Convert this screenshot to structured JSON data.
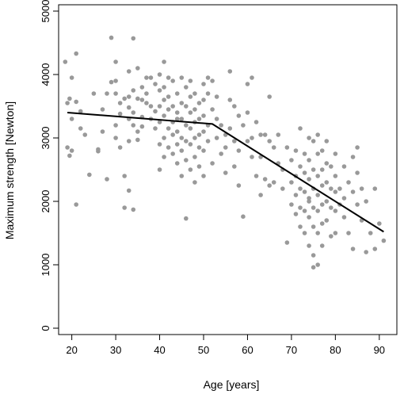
{
  "chart_data": {
    "type": "scatter",
    "xlabel": "Age [years]",
    "ylabel": "Maximum strength [Newton]",
    "xlim": [
      17,
      94
    ],
    "ylim": [
      -100,
      5100
    ],
    "xticks": [
      20,
      30,
      40,
      50,
      60,
      70,
      80,
      90
    ],
    "yticks": [
      0,
      1000,
      2000,
      3000,
      4000,
      5000
    ],
    "point_color": "#999999",
    "line_color": "#000000",
    "points": [
      [
        18.5,
        4200
      ],
      [
        19,
        3550
      ],
      [
        19.5,
        3620
      ],
      [
        20,
        3950
      ],
      [
        20,
        3300
      ],
      [
        19,
        2850
      ],
      [
        20,
        2800
      ],
      [
        19.5,
        2720
      ],
      [
        21,
        4330
      ],
      [
        21,
        3570
      ],
      [
        22,
        3420
      ],
      [
        21,
        1950
      ],
      [
        22,
        3150
      ],
      [
        23,
        3050
      ],
      [
        24,
        2420
      ],
      [
        25,
        3700
      ],
      [
        26,
        2790
      ],
      [
        26,
        2820
      ],
      [
        27,
        3100
      ],
      [
        28,
        2350
      ],
      [
        29,
        4580
      ],
      [
        29,
        3880
      ],
      [
        30,
        3900
      ],
      [
        30,
        4200
      ],
      [
        30,
        3700
      ],
      [
        30,
        3200
      ],
      [
        30,
        3000
      ],
      [
        31,
        3550
      ],
      [
        31,
        3380
      ],
      [
        31,
        2850
      ],
      [
        32,
        3620
      ],
      [
        32,
        2400
      ],
      [
        32,
        1900
      ],
      [
        33,
        4050
      ],
      [
        33,
        3650
      ],
      [
        33,
        3480
      ],
      [
        33,
        3300
      ],
      [
        33,
        2950
      ],
      [
        33,
        2170
      ],
      [
        34,
        4570
      ],
      [
        34,
        3750
      ],
      [
        34,
        3400
      ],
      [
        34,
        3200
      ],
      [
        34,
        1870
      ],
      [
        35,
        3620
      ],
      [
        35,
        3100
      ],
      [
        35,
        2970
      ],
      [
        36,
        3800
      ],
      [
        36,
        3330
      ],
      [
        36,
        3180
      ],
      [
        37,
        3950
      ],
      [
        37,
        3700
      ],
      [
        37,
        3550
      ],
      [
        38,
        3950
      ],
      [
        38,
        3500
      ],
      [
        38,
        3300
      ],
      [
        39,
        3850
      ],
      [
        39,
        3420
      ],
      [
        39,
        3150
      ],
      [
        40,
        4000
      ],
      [
        40,
        3750
      ],
      [
        40,
        3500
      ],
      [
        40,
        3250
      ],
      [
        40,
        2900
      ],
      [
        40,
        2500
      ],
      [
        41,
        4200
      ],
      [
        41,
        3800
      ],
      [
        41,
        3600
      ],
      [
        41,
        3350
      ],
      [
        41,
        3000
      ],
      [
        41,
        2700
      ],
      [
        42,
        3950
      ],
      [
        42,
        3650
      ],
      [
        42,
        3450
      ],
      [
        42,
        3150
      ],
      [
        42,
        2850
      ],
      [
        43,
        3900
      ],
      [
        43,
        3500
      ],
      [
        43,
        3250
      ],
      [
        43,
        3050
      ],
      [
        43,
        2750
      ],
      [
        44,
        3700
      ],
      [
        44,
        3400
      ],
      [
        44,
        3100
      ],
      [
        44,
        2900
      ],
      [
        44,
        2600
      ],
      [
        45,
        3950
      ],
      [
        45,
        3550
      ],
      [
        45,
        3300
      ],
      [
        45,
        3000
      ],
      [
        45,
        2800
      ],
      [
        45,
        2400
      ],
      [
        46,
        3800
      ],
      [
        46,
        3500
      ],
      [
        46,
        3200
      ],
      [
        46,
        2950
      ],
      [
        46,
        2650
      ],
      [
        46,
        1730
      ],
      [
        47,
        3900
      ],
      [
        47,
        3650
      ],
      [
        47,
        3400
      ],
      [
        47,
        3150
      ],
      [
        47,
        2900
      ],
      [
        47,
        2500
      ],
      [
        48,
        3700
      ],
      [
        48,
        3450
      ],
      [
        48,
        3250
      ],
      [
        48,
        3000
      ],
      [
        48,
        2700
      ],
      [
        49,
        3550
      ],
      [
        49,
        3300
      ],
      [
        49,
        3050
      ],
      [
        49,
        2850
      ],
      [
        49,
        2550
      ],
      [
        50,
        3850
      ],
      [
        50,
        3600
      ],
      [
        50,
        3350
      ],
      [
        50,
        3100
      ],
      [
        50,
        2800
      ],
      [
        50,
        2400
      ],
      [
        51,
        3950
      ],
      [
        51,
        3700
      ],
      [
        51,
        3200
      ],
      [
        51,
        2950
      ],
      [
        52,
        3900
      ],
      [
        52,
        3450
      ],
      [
        53,
        3650
      ],
      [
        53,
        3300
      ],
      [
        53,
        3000
      ],
      [
        54,
        3200
      ],
      [
        54,
        2750
      ],
      [
        55,
        3050
      ],
      [
        55,
        2850
      ],
      [
        55,
        2450
      ],
      [
        56,
        4050
      ],
      [
        56,
        3600
      ],
      [
        56,
        3150
      ],
      [
        57,
        3500
      ],
      [
        57,
        2950
      ],
      [
        57,
        2550
      ],
      [
        58,
        3350
      ],
      [
        58,
        2800
      ],
      [
        59,
        3200
      ],
      [
        59,
        1760
      ],
      [
        60,
        3850
      ],
      [
        60,
        3400
      ],
      [
        60,
        2950
      ],
      [
        61,
        3950
      ],
      [
        61,
        3000
      ],
      [
        61,
        2700
      ],
      [
        62,
        3250
      ],
      [
        62,
        2400
      ],
      [
        63,
        3050
      ],
      [
        63,
        2700
      ],
      [
        64,
        2350
      ],
      [
        64,
        3050
      ],
      [
        65,
        3650
      ],
      [
        65,
        2950
      ],
      [
        65,
        2250
      ],
      [
        66,
        2850
      ],
      [
        66,
        2300
      ],
      [
        67,
        2600
      ],
      [
        67,
        3050
      ],
      [
        68,
        2500
      ],
      [
        68,
        2200
      ],
      [
        69,
        2850
      ],
      [
        69,
        1350
      ],
      [
        70,
        2650
      ],
      [
        70,
        2300
      ],
      [
        70,
        1950
      ],
      [
        71,
        2800
      ],
      [
        71,
        2400
      ],
      [
        71,
        2100
      ],
      [
        71,
        1800
      ],
      [
        72,
        3150
      ],
      [
        72,
        2550
      ],
      [
        72,
        2200
      ],
      [
        72,
        1900
      ],
      [
        72,
        1600
      ],
      [
        73,
        2750
      ],
      [
        73,
        2450
      ],
      [
        73,
        2150
      ],
      [
        73,
        1850
      ],
      [
        73,
        1500
      ],
      [
        74,
        3000
      ],
      [
        74,
        2650
      ],
      [
        74,
        2350
      ],
      [
        74,
        2050
      ],
      [
        74,
        1750
      ],
      [
        74,
        1300
      ],
      [
        75,
        2950
      ],
      [
        75,
        2500
      ],
      [
        75,
        2200
      ],
      [
        75,
        1900
      ],
      [
        75,
        1600
      ],
      [
        75,
        1150
      ],
      [
        75,
        960
      ],
      [
        76,
        3050
      ],
      [
        76,
        2750
      ],
      [
        76,
        2400
      ],
      [
        76,
        2100
      ],
      [
        76,
        1850
      ],
      [
        76,
        1500
      ],
      [
        76,
        1000
      ],
      [
        77,
        2800
      ],
      [
        77,
        2500
      ],
      [
        77,
        2250
      ],
      [
        77,
        1950
      ],
      [
        77,
        1650
      ],
      [
        77,
        1300
      ],
      [
        78,
        2950
      ],
      [
        78,
        2600
      ],
      [
        78,
        2300
      ],
      [
        78,
        2000
      ],
      [
        78,
        1700
      ],
      [
        79,
        2550
      ],
      [
        79,
        2200
      ],
      [
        79,
        1900
      ],
      [
        80,
        2750
      ],
      [
        80,
        2400
      ],
      [
        80,
        2150
      ],
      [
        80,
        1850
      ],
      [
        80,
        1500
      ],
      [
        81,
        2200
      ],
      [
        81,
        1950
      ],
      [
        82,
        2550
      ],
      [
        82,
        2050
      ],
      [
        82,
        1750
      ],
      [
        83,
        2300
      ],
      [
        83,
        1500
      ],
      [
        84,
        2700
      ],
      [
        84,
        2150
      ],
      [
        84,
        1250
      ],
      [
        85,
        2850
      ],
      [
        85,
        2450
      ],
      [
        85,
        1950
      ],
      [
        86,
        2200
      ],
      [
        86,
        1700
      ],
      [
        87,
        2000
      ],
      [
        87,
        1200
      ],
      [
        88,
        1500
      ],
      [
        89,
        2200
      ],
      [
        89,
        1250
      ],
      [
        90,
        1650
      ],
      [
        91,
        1380
      ],
      [
        27,
        3450
      ],
      [
        36,
        3600
      ],
      [
        44,
        3300
      ],
      [
        48,
        2300
      ],
      [
        52,
        2600
      ],
      [
        58,
        2250
      ],
      [
        63,
        2100
      ],
      [
        79,
        1450
      ],
      [
        74,
        2000
      ],
      [
        28,
        3700
      ],
      [
        35,
        4100
      ]
    ],
    "fit_line": [
      [
        19,
        3400
      ],
      [
        52,
        3220
      ],
      [
        91,
        1520
      ]
    ]
  }
}
